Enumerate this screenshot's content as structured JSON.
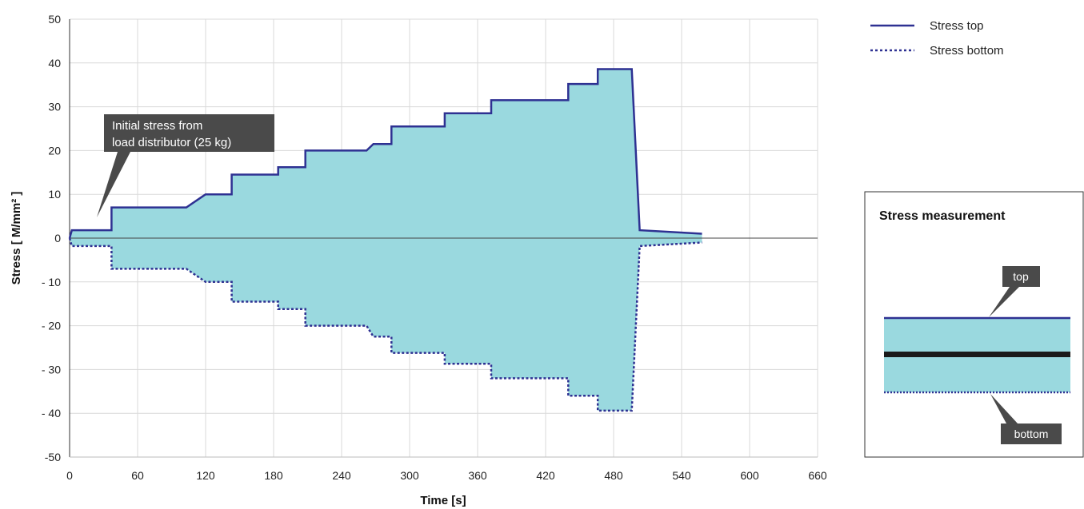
{
  "colors": {
    "fill": "#9ad9df",
    "line": "#2e3192",
    "grid": "#d9d9d9",
    "callout": "#4a4a4a",
    "beam_core": "#1a1a1a"
  },
  "chart_data": {
    "type": "area",
    "xlabel": "Time [s]",
    "ylabel": "Stress  [ M/mm² ]",
    "x_tick_labels": [
      "0",
      "60",
      "120",
      "180",
      "240",
      "300",
      "360",
      "420",
      "480",
      "540",
      "600",
      "660"
    ],
    "x_ticks": [
      0,
      60,
      120,
      180,
      240,
      300,
      360,
      420,
      480,
      540,
      600,
      660
    ],
    "xlim": [
      0,
      660
    ],
    "y_tick_labels": [
      "50",
      "40",
      "30",
      "20",
      "10",
      "0",
      "- 10",
      "- 20",
      "- 30",
      "- 40",
      "-50"
    ],
    "y_ticks": [
      50,
      40,
      30,
      20,
      10,
      0,
      -10,
      -20,
      -30,
      -40,
      -50
    ],
    "ylim": [
      -50,
      50
    ],
    "grid": true,
    "legend_position": "top-right",
    "series": [
      {
        "name": "Stress top",
        "style": "solid",
        "points": [
          [
            0,
            0
          ],
          [
            2,
            1.8
          ],
          [
            37,
            1.8
          ],
          [
            37,
            7
          ],
          [
            103,
            7
          ],
          [
            120,
            10
          ],
          [
            143,
            10
          ],
          [
            143,
            14.5
          ],
          [
            184,
            14.5
          ],
          [
            184,
            16.2
          ],
          [
            208,
            16.2
          ],
          [
            208,
            20
          ],
          [
            262,
            20
          ],
          [
            268,
            21.5
          ],
          [
            284,
            21.5
          ],
          [
            284,
            25.5
          ],
          [
            331,
            25.5
          ],
          [
            331,
            28.5
          ],
          [
            372,
            28.5
          ],
          [
            372,
            31.5
          ],
          [
            440,
            31.5
          ],
          [
            440,
            35.2
          ],
          [
            466,
            35.2
          ],
          [
            466,
            38.6
          ],
          [
            496,
            38.6
          ],
          [
            503,
            1.8
          ],
          [
            558,
            1
          ]
        ]
      },
      {
        "name": "Stress bottom",
        "style": "dotted",
        "points": [
          [
            0,
            0
          ],
          [
            2,
            -1.8
          ],
          [
            37,
            -1.8
          ],
          [
            37,
            -7
          ],
          [
            103,
            -7
          ],
          [
            120,
            -10
          ],
          [
            143,
            -10
          ],
          [
            143,
            -14.5
          ],
          [
            184,
            -14.5
          ],
          [
            184,
            -16.2
          ],
          [
            208,
            -16.2
          ],
          [
            208,
            -20
          ],
          [
            262,
            -20
          ],
          [
            268,
            -22.5
          ],
          [
            284,
            -22.5
          ],
          [
            284,
            -26.2
          ],
          [
            331,
            -26.2
          ],
          [
            331,
            -28.7
          ],
          [
            372,
            -28.7
          ],
          [
            372,
            -32
          ],
          [
            440,
            -32
          ],
          [
            440,
            -36
          ],
          [
            466,
            -36
          ],
          [
            466,
            -39.4
          ],
          [
            496,
            -39.4
          ],
          [
            503,
            -1.8
          ],
          [
            558,
            -1
          ]
        ]
      }
    ],
    "annotations": [
      {
        "text_lines": [
          "Initial stress from",
          "load distributor (25 kg)"
        ],
        "target": [
          22,
          2.5
        ]
      }
    ]
  },
  "legend": {
    "top": "Stress top",
    "bottom": "Stress bottom"
  },
  "inset": {
    "title": "Stress measurement",
    "top_label": "top",
    "bottom_label": "bottom"
  }
}
